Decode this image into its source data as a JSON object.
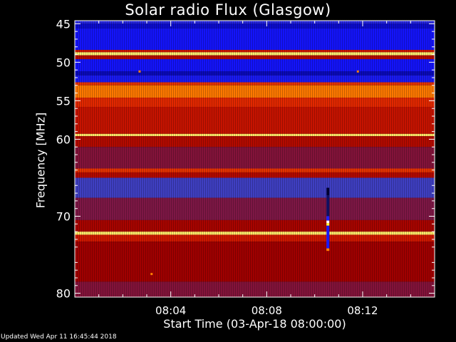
{
  "chart_data": {
    "type": "heatmap",
    "title": "Solar radio Flux (Glasgow)",
    "xlabel": "Start Time (03-Apr-18 08:00:00)",
    "ylabel": "Frequency [MHz]",
    "x_unit": "minutes after 08:00",
    "xlim": [
      0,
      15
    ],
    "ylim": [
      80.5,
      44.6
    ],
    "x_ticks": [
      {
        "value": 4,
        "label": "08:04"
      },
      {
        "value": 8,
        "label": "08:08"
      },
      {
        "value": 12,
        "label": "08:12"
      }
    ],
    "y_ticks": [
      {
        "value": 45,
        "label": "45"
      },
      {
        "value": 50,
        "label": "50"
      },
      {
        "value": 55,
        "label": "55"
      },
      {
        "value": 60,
        "label": "60"
      },
      {
        "value": 70,
        "label": "70"
      },
      {
        "value": 80,
        "label": "80"
      }
    ],
    "colormap": [
      "#000050",
      "#1010ff",
      "#4040c0",
      "#a00000",
      "#e02000",
      "#ff8000",
      "#ffff80"
    ],
    "bands": [
      {
        "f0": 44.6,
        "f1": 45.0,
        "level": 0.25
      },
      {
        "f0": 45.0,
        "f1": 45.6,
        "level": 0.12
      },
      {
        "f0": 45.6,
        "f1": 48.4,
        "level": 0.18
      },
      {
        "f0": 48.4,
        "f1": 48.7,
        "level": 0.62
      },
      {
        "f0": 48.7,
        "f1": 49.1,
        "level": 0.98
      },
      {
        "f0": 49.1,
        "f1": 49.6,
        "level": 0.55
      },
      {
        "f0": 49.6,
        "f1": 51.2,
        "level": 0.18
      },
      {
        "f0": 51.2,
        "f1": 51.7,
        "level": 0.1
      },
      {
        "f0": 51.7,
        "f1": 52.6,
        "level": 0.2
      },
      {
        "f0": 52.6,
        "f1": 53.0,
        "level": 0.7
      },
      {
        "f0": 53.0,
        "f1": 54.6,
        "level": 0.82
      },
      {
        "f0": 54.6,
        "f1": 55.8,
        "level": 0.68
      },
      {
        "f0": 55.8,
        "f1": 59.3,
        "level": 0.6
      },
      {
        "f0": 59.3,
        "f1": 59.6,
        "level": 0.97
      },
      {
        "f0": 59.6,
        "f1": 61.0,
        "level": 0.55
      },
      {
        "f0": 61.0,
        "f1": 63.8,
        "level": 0.45
      },
      {
        "f0": 63.8,
        "f1": 64.3,
        "level": 0.7
      },
      {
        "f0": 64.3,
        "f1": 65.0,
        "level": 0.55
      },
      {
        "f0": 65.0,
        "f1": 67.6,
        "level": 0.33
      },
      {
        "f0": 67.6,
        "f1": 70.5,
        "level": 0.44
      },
      {
        "f0": 70.5,
        "f1": 72.0,
        "level": 0.52
      },
      {
        "f0": 72.0,
        "f1": 72.4,
        "level": 0.97
      },
      {
        "f0": 72.4,
        "f1": 73.3,
        "level": 0.62
      },
      {
        "f0": 73.3,
        "f1": 78.5,
        "level": 0.5
      },
      {
        "f0": 78.5,
        "f1": 80.5,
        "level": 0.45
      }
    ],
    "features": [
      {
        "kind": "burst",
        "minute": 10.55,
        "f0": 66.3,
        "f1": 74.5
      },
      {
        "kind": "spot",
        "minute": 2.7,
        "freq": 51.2
      },
      {
        "kind": "spot",
        "minute": 11.8,
        "freq": 51.2
      },
      {
        "kind": "spot",
        "minute": 3.2,
        "freq": 77.5
      }
    ]
  },
  "footer": "Updated Wed Apr 11 16:45:44 2018"
}
